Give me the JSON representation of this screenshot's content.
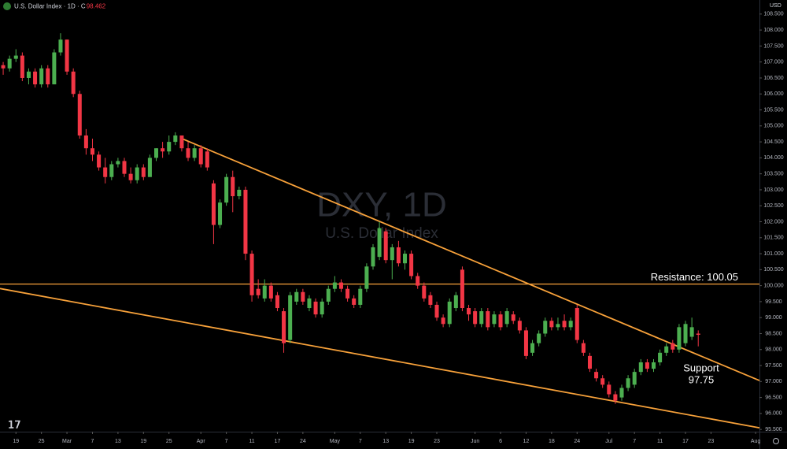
{
  "header": {
    "symbol": "U.S. Dollar Index · 1D · C",
    "close": "98.462",
    "currency": "USD"
  },
  "chart_data": {
    "type": "candlestick",
    "title": "DXY, 1D",
    "subtitle": "U.S. Dollar Index",
    "up_color": "#4caf50",
    "down_color": "#f23645",
    "line_color": "#f7a13a",
    "grid": false,
    "xlim": [
      -0.5,
      118.6
    ],
    "ylim": [
      95.43,
      108.94
    ],
    "xticks": [
      {
        "value": 2,
        "label": "19"
      },
      {
        "value": 6,
        "label": "25"
      },
      {
        "value": 10,
        "label": "Mar"
      },
      {
        "value": 14,
        "label": "7"
      },
      {
        "value": 18,
        "label": "13"
      },
      {
        "value": 22,
        "label": "19"
      },
      {
        "value": 26,
        "label": "25"
      },
      {
        "value": 31,
        "label": "Apr"
      },
      {
        "value": 35,
        "label": "7"
      },
      {
        "value": 39,
        "label": "11"
      },
      {
        "value": 43,
        "label": "17"
      },
      {
        "value": 47,
        "label": "24"
      },
      {
        "value": 52,
        "label": "May"
      },
      {
        "value": 56,
        "label": "7"
      },
      {
        "value": 60,
        "label": "13"
      },
      {
        "value": 64,
        "label": "19"
      },
      {
        "value": 68,
        "label": "23"
      },
      {
        "value": 74,
        "label": "Jun"
      },
      {
        "value": 78,
        "label": "6"
      },
      {
        "value": 82,
        "label": "12"
      },
      {
        "value": 86,
        "label": "18"
      },
      {
        "value": 90,
        "label": "24"
      },
      {
        "value": 95,
        "label": "Jul"
      },
      {
        "value": 99,
        "label": "7"
      },
      {
        "value": 103,
        "label": "11"
      },
      {
        "value": 107,
        "label": "17"
      },
      {
        "value": 111,
        "label": "23"
      },
      {
        "value": 118,
        "label": "Aug"
      }
    ],
    "yticks": [
      {
        "value": 95.5,
        "label": "95.500"
      },
      {
        "value": 96,
        "label": "96.000"
      },
      {
        "value": 96.5,
        "label": "96.500"
      },
      {
        "value": 97,
        "label": "97.000"
      },
      {
        "value": 97.5,
        "label": "97.500"
      },
      {
        "value": 98,
        "label": "98.000"
      },
      {
        "value": 98.5,
        "label": "98.500"
      },
      {
        "value": 99,
        "label": "99.000"
      },
      {
        "value": 99.5,
        "label": "99.500"
      },
      {
        "value": 100,
        "label": "100.000"
      },
      {
        "value": 100.5,
        "label": "100.500"
      },
      {
        "value": 101,
        "label": "101.000"
      },
      {
        "value": 101.5,
        "label": "101.500"
      },
      {
        "value": 102,
        "label": "102.000"
      },
      {
        "value": 102.5,
        "label": "102.500"
      },
      {
        "value": 103,
        "label": "103.000"
      },
      {
        "value": 103.5,
        "label": "103.500"
      },
      {
        "value": 104,
        "label": "104.000"
      },
      {
        "value": 104.5,
        "label": "104.500"
      },
      {
        "value": 105,
        "label": "105.000"
      },
      {
        "value": 105.5,
        "label": "105.500"
      },
      {
        "value": 106,
        "label": "106.000"
      },
      {
        "value": 106.5,
        "label": "106.500"
      },
      {
        "value": 107,
        "label": "107.000"
      },
      {
        "value": 107.5,
        "label": "107.500"
      },
      {
        "value": 108,
        "label": "108.000"
      },
      {
        "value": 108.5,
        "label": "108.500"
      }
    ],
    "open": [
      106.9,
      106.8,
      107.1,
      107.2,
      106.5,
      106.7,
      106.3,
      106.8,
      106.3,
      107.3,
      107.7,
      106.7,
      106.0,
      104.7,
      104.3,
      104.1,
      103.7,
      103.4,
      103.8,
      103.9,
      103.5,
      103.3,
      103.7,
      103.4,
      104.0,
      104.3,
      104.2,
      104.5,
      104.7,
      104.3,
      104.0,
      104.3,
      104.2,
      103.2,
      101.9,
      102.6,
      103.4,
      102.8,
      103.0,
      101.0,
      99.9,
      99.6,
      100.0,
      99.7,
      99.2,
      98.3,
      99.5,
      99.8,
      99.3,
      99.5,
      99.1,
      99.5,
      99.9,
      100.1,
      99.9,
      99.6,
      99.4,
      99.9,
      100.6,
      100.9,
      101.7,
      100.8,
      101.2,
      100.7,
      101.0,
      100.3,
      100.0,
      99.7,
      99.4,
      99.0,
      98.8,
      99.3,
      100.5,
      99.3,
      99.2,
      98.8,
      99.2,
      98.8,
      99.1,
      98.8,
      99.1,
      98.9,
      98.6,
      97.9,
      98.2,
      98.5,
      98.9,
      98.7,
      98.9,
      98.7,
      99.3,
      98.2,
      97.8,
      97.3,
      97.1,
      96.9,
      96.6,
      96.5,
      96.8,
      96.9,
      97.3,
      97.6,
      97.4,
      97.6,
      97.9,
      98.2,
      98.0,
      98.2,
      98.4,
      98.5
    ],
    "high": [
      107.0,
      107.2,
      107.4,
      107.3,
      106.8,
      106.8,
      106.9,
      106.9,
      107.4,
      107.9,
      107.7,
      106.8,
      106.1,
      104.9,
      104.6,
      104.2,
      104.0,
      103.9,
      104.0,
      104.0,
      103.7,
      103.8,
      103.8,
      104.1,
      104.3,
      104.5,
      104.7,
      104.8,
      104.7,
      104.5,
      104.4,
      104.4,
      104.3,
      103.3,
      102.7,
      103.5,
      103.6,
      103.1,
      103.1,
      101.1,
      100.2,
      100.2,
      100.1,
      99.8,
      99.3,
      99.8,
      99.9,
      99.9,
      99.7,
      99.6,
      99.6,
      100.0,
      100.3,
      100.2,
      100.0,
      99.7,
      100.0,
      100.7,
      101.3,
      102.0,
      101.8,
      101.3,
      101.4,
      101.1,
      101.1,
      100.4,
      100.1,
      99.8,
      99.5,
      99.1,
      99.6,
      99.8,
      100.6,
      99.4,
      99.3,
      99.3,
      99.3,
      99.2,
      99.2,
      99.3,
      99.2,
      99.0,
      98.7,
      98.3,
      98.6,
      99.0,
      99.0,
      99.0,
      99.1,
      99.0,
      99.4,
      98.3,
      97.9,
      97.4,
      97.2,
      97.0,
      96.7,
      96.9,
      97.2,
      97.4,
      97.7,
      97.7,
      97.7,
      98.0,
      98.2,
      98.3,
      98.8,
      98.9,
      99.0,
      98.6
    ],
    "low": [
      106.6,
      106.7,
      107.0,
      106.4,
      106.3,
      106.2,
      106.2,
      106.2,
      106.3,
      107.2,
      106.6,
      105.9,
      104.6,
      104.1,
      103.9,
      103.6,
      103.2,
      103.3,
      103.7,
      103.4,
      103.2,
      103.2,
      103.3,
      103.4,
      103.9,
      104.0,
      104.1,
      104.4,
      104.2,
      103.9,
      103.9,
      103.7,
      103.6,
      101.3,
      101.8,
      102.5,
      102.3,
      102.7,
      100.8,
      99.5,
      99.6,
      99.5,
      99.5,
      99.2,
      97.9,
      98.2,
      99.4,
      99.4,
      99.2,
      99.0,
      99.0,
      99.4,
      99.8,
      99.8,
      99.5,
      99.3,
      99.3,
      99.8,
      100.5,
      100.8,
      100.7,
      100.2,
      100.6,
      100.5,
      100.2,
      99.9,
      99.5,
      99.3,
      98.9,
      98.7,
      98.7,
      99.2,
      99.2,
      98.9,
      98.7,
      98.7,
      98.6,
      98.7,
      98.6,
      98.7,
      98.8,
      98.5,
      97.7,
      97.8,
      98.1,
      98.4,
      98.6,
      98.6,
      98.6,
      98.6,
      98.2,
      97.8,
      97.3,
      97.0,
      96.8,
      96.5,
      96.3,
      96.4,
      96.7,
      96.8,
      97.2,
      97.3,
      97.3,
      97.5,
      97.8,
      97.9,
      97.9,
      98.1,
      98.3,
      98.1
    ],
    "close": [
      106.8,
      107.1,
      107.2,
      106.5,
      106.7,
      106.3,
      106.8,
      106.3,
      107.3,
      107.7,
      106.7,
      106.0,
      104.7,
      104.3,
      104.1,
      103.7,
      103.4,
      103.8,
      103.9,
      103.5,
      103.3,
      103.7,
      103.4,
      104.0,
      104.3,
      104.2,
      104.5,
      104.7,
      104.3,
      104.0,
      104.3,
      103.8,
      103.7,
      101.9,
      102.6,
      103.4,
      102.8,
      103.0,
      101.0,
      99.7,
      99.7,
      100.0,
      99.6,
      99.3,
      98.2,
      99.7,
      99.8,
      99.5,
      99.6,
      99.1,
      99.5,
      99.9,
      100.1,
      99.9,
      99.6,
      99.4,
      99.9,
      100.6,
      101.2,
      101.8,
      100.8,
      101.2,
      100.7,
      101.0,
      100.3,
      100.0,
      99.6,
      99.4,
      99.0,
      98.8,
      99.5,
      99.7,
      99.3,
      99.1,
      98.8,
      99.2,
      98.7,
      99.1,
      98.7,
      99.2,
      98.9,
      98.6,
      97.8,
      98.2,
      98.5,
      98.9,
      98.7,
      98.8,
      98.7,
      98.9,
      98.3,
      97.9,
      97.4,
      97.1,
      96.9,
      96.6,
      96.4,
      96.8,
      97.1,
      97.3,
      97.6,
      97.4,
      97.6,
      97.9,
      98.1,
      98.0,
      98.7,
      98.8,
      98.7,
      98.462
    ],
    "trendlines": [
      {
        "x": [
          27.8,
          118.6
        ],
        "y": [
          104.62,
          97.03
        ]
      },
      {
        "x": [
          -0.5,
          118.6
        ],
        "y": [
          99.91,
          95.55
        ]
      }
    ],
    "resistance": {
      "label": "Resistance: 100.05",
      "value": 100.05
    },
    "support": {
      "label": "Support",
      "value": 97.75
    }
  }
}
